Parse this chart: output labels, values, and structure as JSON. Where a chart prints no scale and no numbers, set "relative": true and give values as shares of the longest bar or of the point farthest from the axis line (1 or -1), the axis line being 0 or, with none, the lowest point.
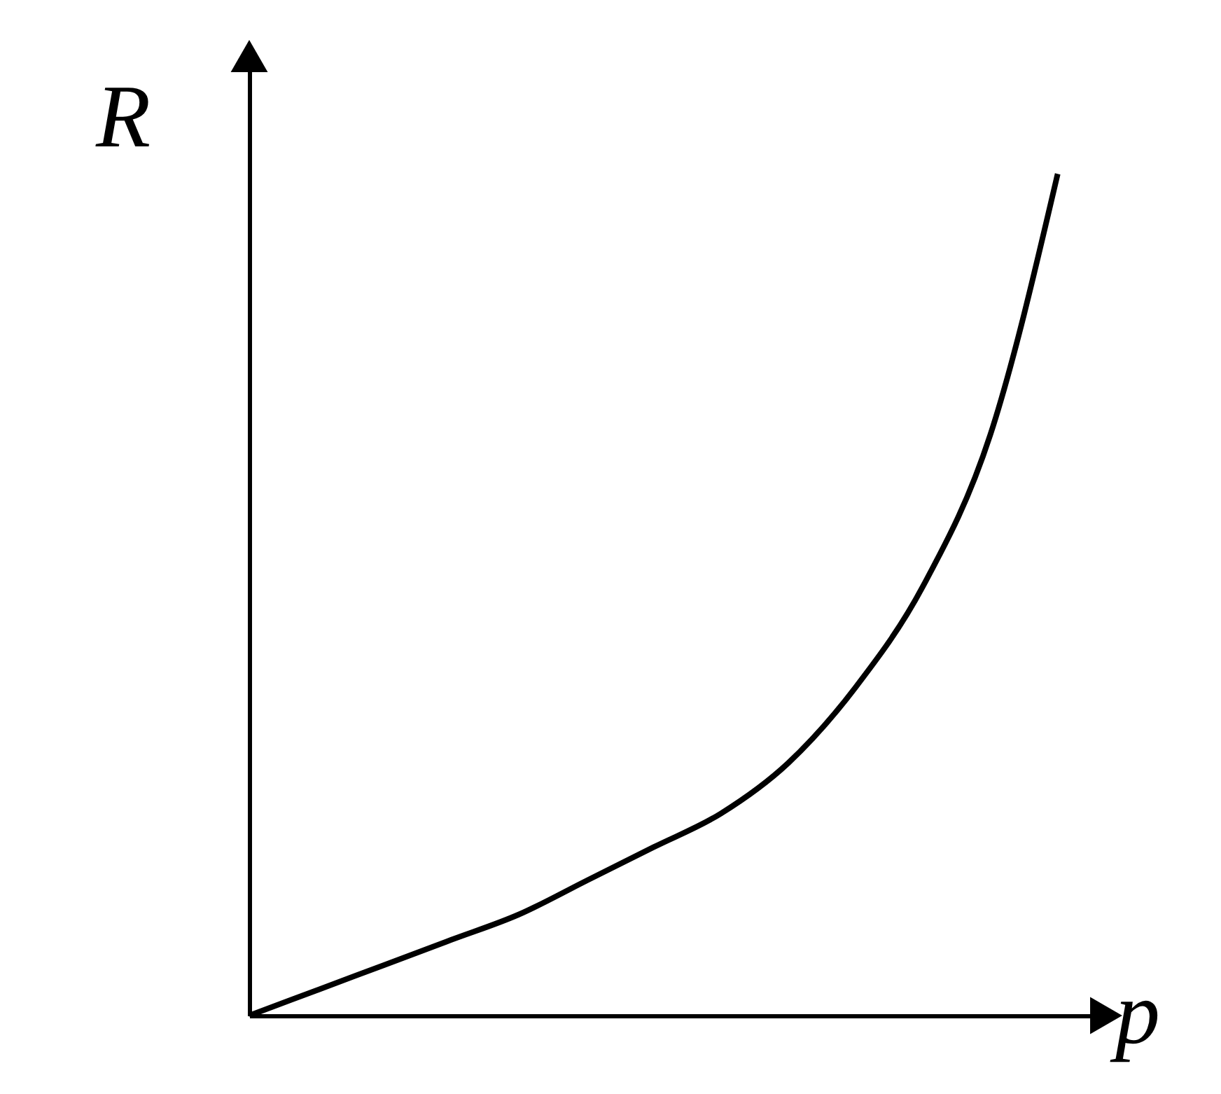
{
  "chart_data": {
    "type": "line",
    "relative": true,
    "xlabel": "p",
    "ylabel": "R",
    "color": "#000000",
    "categories": [
      null,
      null,
      null,
      null,
      null,
      null,
      null,
      null,
      null,
      null,
      null,
      null,
      null
    ],
    "values": [
      0,
      0.03,
      0.06,
      0.09,
      0.12,
      0.16,
      0.2,
      0.24,
      0.3,
      0.39,
      0.51,
      0.69,
      1
    ]
  }
}
